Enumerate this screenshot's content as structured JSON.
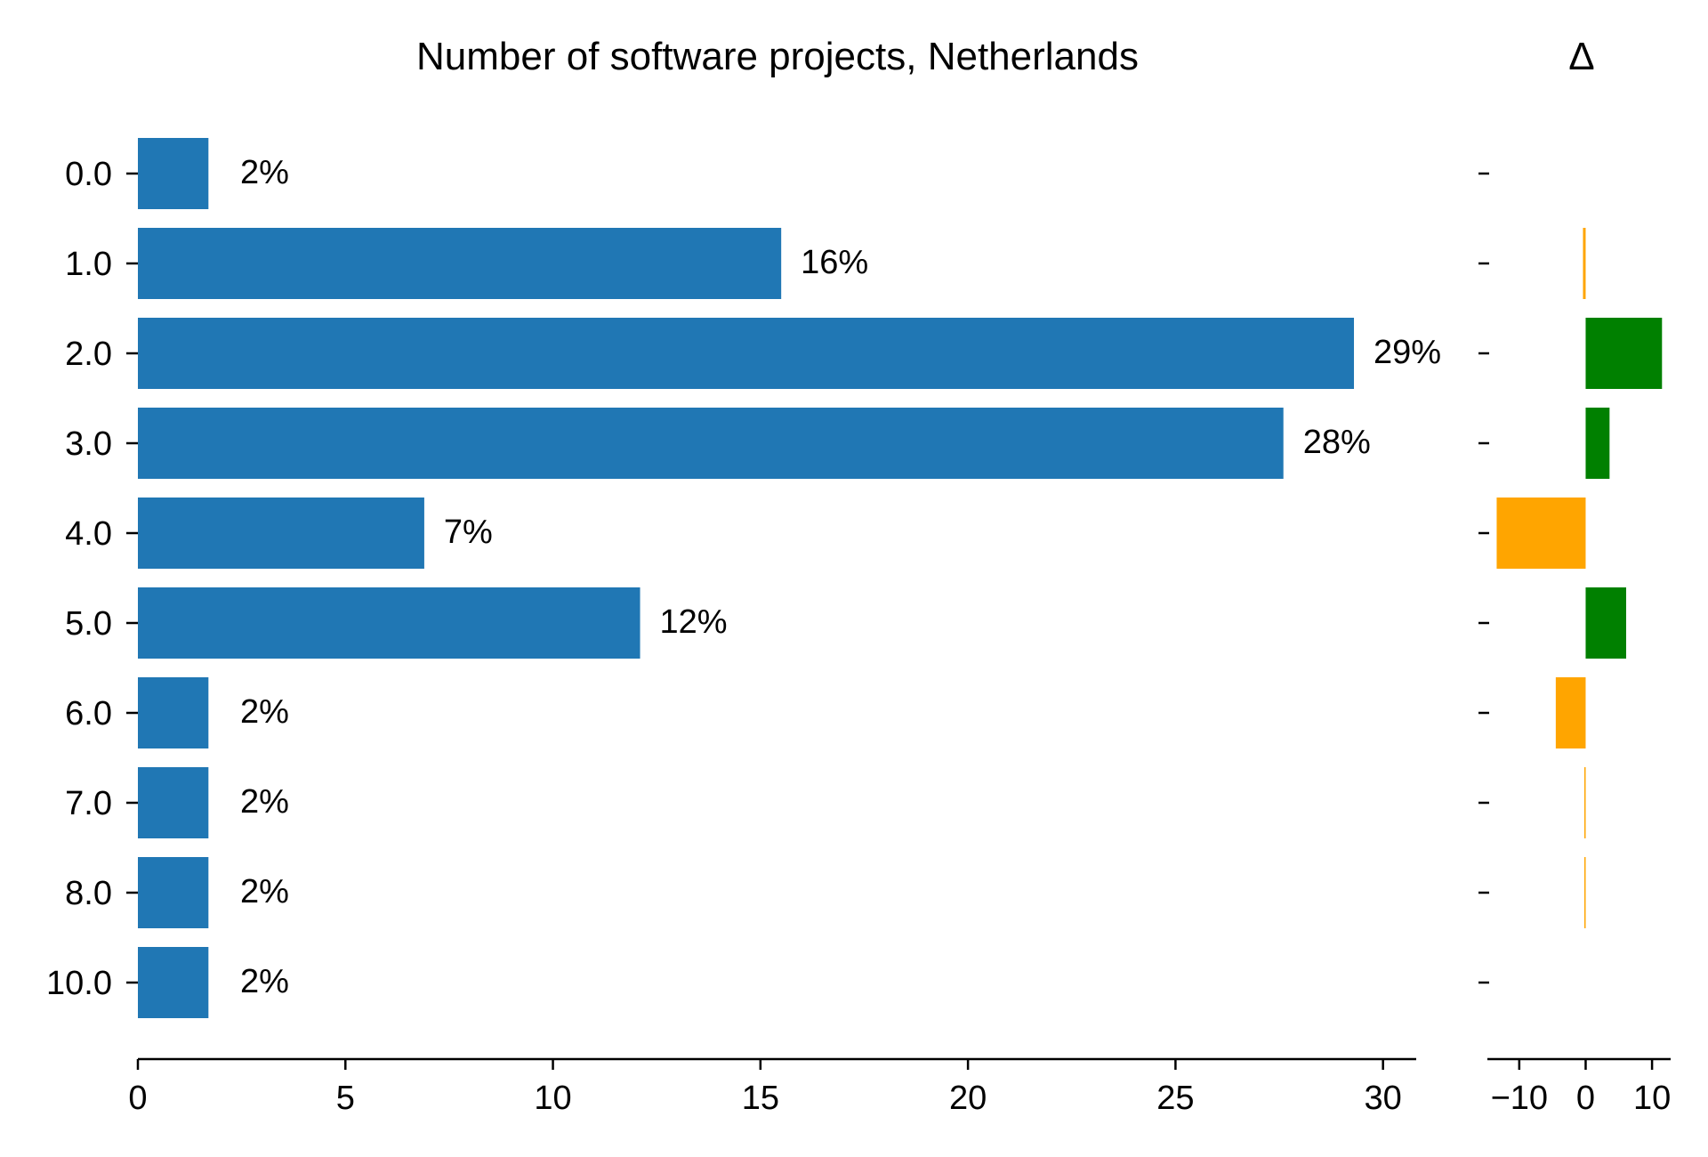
{
  "chart_data": [
    {
      "type": "bar",
      "orientation": "horizontal",
      "title": "Number of software projects, Netherlands",
      "categories": [
        "0.0",
        "1.0",
        "2.0",
        "3.0",
        "4.0",
        "5.0",
        "6.0",
        "7.0",
        "8.0",
        "10.0"
      ],
      "values": [
        1.7,
        15.5,
        29.3,
        27.6,
        6.9,
        12.1,
        1.7,
        1.7,
        1.7,
        1.7
      ],
      "value_labels": [
        "2%",
        "16%",
        "29%",
        "28%",
        "7%",
        "12%",
        "2%",
        "2%",
        "2%",
        "2%"
      ],
      "xlim": [
        0,
        30.8
      ],
      "xticks": [
        0,
        5,
        10,
        15,
        20,
        25,
        30
      ],
      "xticklabels": [
        "0",
        "5",
        "10",
        "15",
        "20",
        "25",
        "30"
      ],
      "xlabel": "",
      "ylabel": "",
      "grid": false,
      "colors": {
        "bar": "#2077b4"
      }
    },
    {
      "type": "bar",
      "orientation": "horizontal",
      "title": "Δ",
      "categories": [
        "0.0",
        "1.0",
        "2.0",
        "3.0",
        "4.0",
        "5.0",
        "6.0",
        "7.0",
        "8.0",
        "10.0"
      ],
      "values": [
        0,
        -0.4,
        11.5,
        3.6,
        -13.4,
        6.1,
        -4.5,
        -0.2,
        -0.2,
        0
      ],
      "xlim": [
        -14.8,
        12.8
      ],
      "xticks": [
        -10,
        0,
        10
      ],
      "xticklabels": [
        "−10",
        "0",
        "10"
      ],
      "xlabel": "",
      "ylabel": "",
      "grid": false,
      "colors": {
        "positive": "#008000",
        "negative": "#ffa500"
      }
    }
  ]
}
